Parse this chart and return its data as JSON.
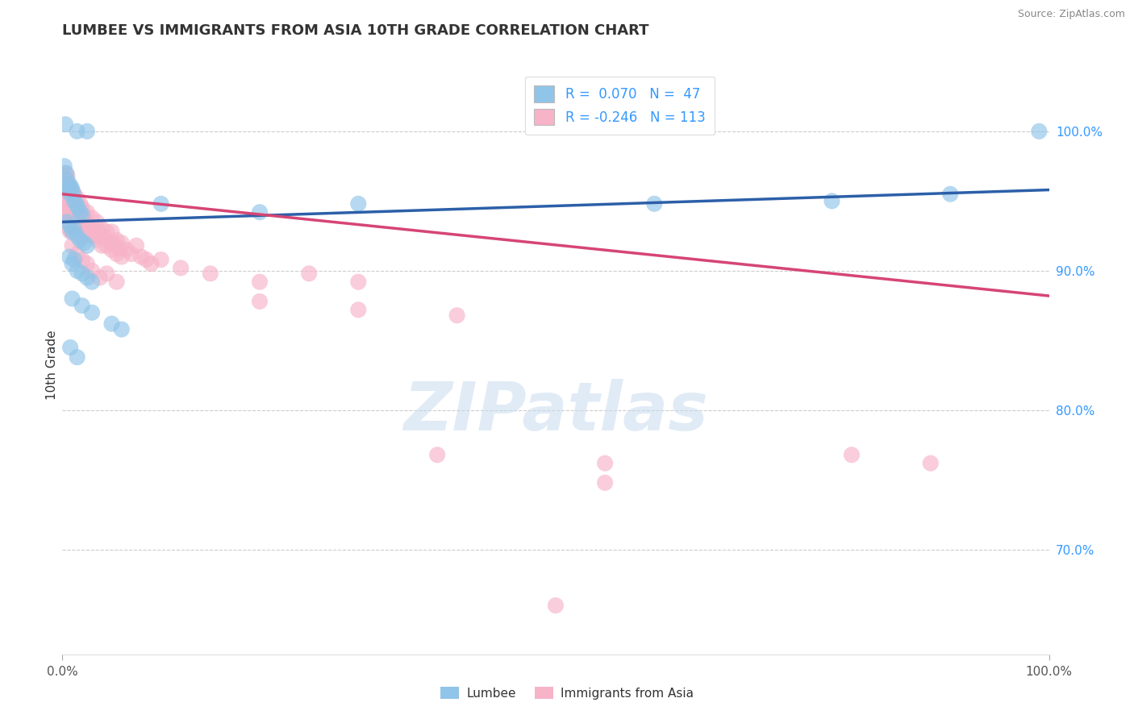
{
  "title": "LUMBEE VS IMMIGRANTS FROM ASIA 10TH GRADE CORRELATION CHART",
  "source_text": "Source: ZipAtlas.com",
  "ylabel": "10th Grade",
  "xlim": [
    0.0,
    1.0
  ],
  "ylim": [
    0.625,
    1.04
  ],
  "ytick_labels": [
    "70.0%",
    "80.0%",
    "90.0%",
    "100.0%"
  ],
  "ytick_values": [
    0.7,
    0.8,
    0.9,
    1.0
  ],
  "blue_scatter_color": "#90c4e8",
  "pink_scatter_color": "#f7b3c8",
  "line_blue_color": "#2c5fa8",
  "line_pink_color": "#d64575",
  "watermark": "ZIPatlas",
  "blue_line_y0": 0.935,
  "blue_line_y1": 0.958,
  "pink_line_y0": 0.955,
  "pink_line_y1": 0.882,
  "lumbee_x": [
    0.003,
    0.015,
    0.025,
    0.002,
    0.004,
    0.004,
    0.005,
    0.006,
    0.007,
    0.008,
    0.009,
    0.01,
    0.011,
    0.012,
    0.014,
    0.016,
    0.018,
    0.02,
    0.005,
    0.008,
    0.01,
    0.012,
    0.015,
    0.018,
    0.022,
    0.025,
    0.007,
    0.01,
    0.012,
    0.015,
    0.02,
    0.025,
    0.03,
    0.01,
    0.02,
    0.03,
    0.05,
    0.06,
    0.008,
    0.015,
    0.1,
    0.2,
    0.3,
    0.6,
    0.78,
    0.9,
    0.99
  ],
  "lumbee_y": [
    1.005,
    1.0,
    1.0,
    0.975,
    0.97,
    0.96,
    0.965,
    0.958,
    0.962,
    0.955,
    0.96,
    0.958,
    0.955,
    0.95,
    0.948,
    0.945,
    0.942,
    0.94,
    0.935,
    0.932,
    0.928,
    0.93,
    0.925,
    0.922,
    0.92,
    0.918,
    0.91,
    0.905,
    0.908,
    0.9,
    0.898,
    0.895,
    0.892,
    0.88,
    0.875,
    0.87,
    0.862,
    0.858,
    0.845,
    0.838,
    0.948,
    0.942,
    0.948,
    0.948,
    0.95,
    0.955,
    1.0
  ],
  "asia_x": [
    0.001,
    0.002,
    0.002,
    0.003,
    0.003,
    0.003,
    0.004,
    0.004,
    0.004,
    0.005,
    0.005,
    0.005,
    0.005,
    0.006,
    0.006,
    0.006,
    0.007,
    0.007,
    0.007,
    0.007,
    0.008,
    0.008,
    0.008,
    0.008,
    0.009,
    0.009,
    0.009,
    0.01,
    0.01,
    0.01,
    0.011,
    0.012,
    0.012,
    0.013,
    0.014,
    0.015,
    0.015,
    0.015,
    0.016,
    0.017,
    0.018,
    0.018,
    0.02,
    0.02,
    0.02,
    0.022,
    0.022,
    0.024,
    0.025,
    0.025,
    0.026,
    0.028,
    0.03,
    0.03,
    0.032,
    0.033,
    0.035,
    0.035,
    0.036,
    0.038,
    0.04,
    0.04,
    0.042,
    0.045,
    0.045,
    0.048,
    0.05,
    0.05,
    0.052,
    0.055,
    0.055,
    0.058,
    0.06,
    0.06,
    0.065,
    0.07,
    0.075,
    0.08,
    0.085,
    0.09,
    0.01,
    0.015,
    0.02,
    0.025,
    0.03,
    0.038,
    0.045,
    0.055,
    0.1,
    0.12,
    0.15,
    0.2,
    0.25,
    0.3,
    0.2,
    0.3,
    0.4,
    0.38,
    0.55,
    0.8,
    0.88,
    0.5,
    0.55
  ],
  "asia_y": [
    0.965,
    0.968,
    0.955,
    0.97,
    0.958,
    0.948,
    0.962,
    0.952,
    0.942,
    0.968,
    0.958,
    0.948,
    0.938,
    0.962,
    0.952,
    0.94,
    0.96,
    0.95,
    0.94,
    0.93,
    0.958,
    0.948,
    0.938,
    0.928,
    0.955,
    0.945,
    0.935,
    0.952,
    0.942,
    0.932,
    0.948,
    0.955,
    0.94,
    0.945,
    0.94,
    0.952,
    0.94,
    0.93,
    0.942,
    0.938,
    0.948,
    0.935,
    0.945,
    0.935,
    0.925,
    0.94,
    0.928,
    0.935,
    0.942,
    0.93,
    0.932,
    0.928,
    0.938,
    0.925,
    0.93,
    0.928,
    0.935,
    0.922,
    0.928,
    0.924,
    0.93,
    0.918,
    0.924,
    0.928,
    0.918,
    0.92,
    0.928,
    0.915,
    0.92,
    0.922,
    0.912,
    0.916,
    0.92,
    0.91,
    0.915,
    0.912,
    0.918,
    0.91,
    0.908,
    0.905,
    0.918,
    0.912,
    0.908,
    0.905,
    0.9,
    0.895,
    0.898,
    0.892,
    0.908,
    0.902,
    0.898,
    0.892,
    0.898,
    0.892,
    0.878,
    0.872,
    0.868,
    0.768,
    0.762,
    0.768,
    0.762,
    0.66,
    0.748
  ]
}
